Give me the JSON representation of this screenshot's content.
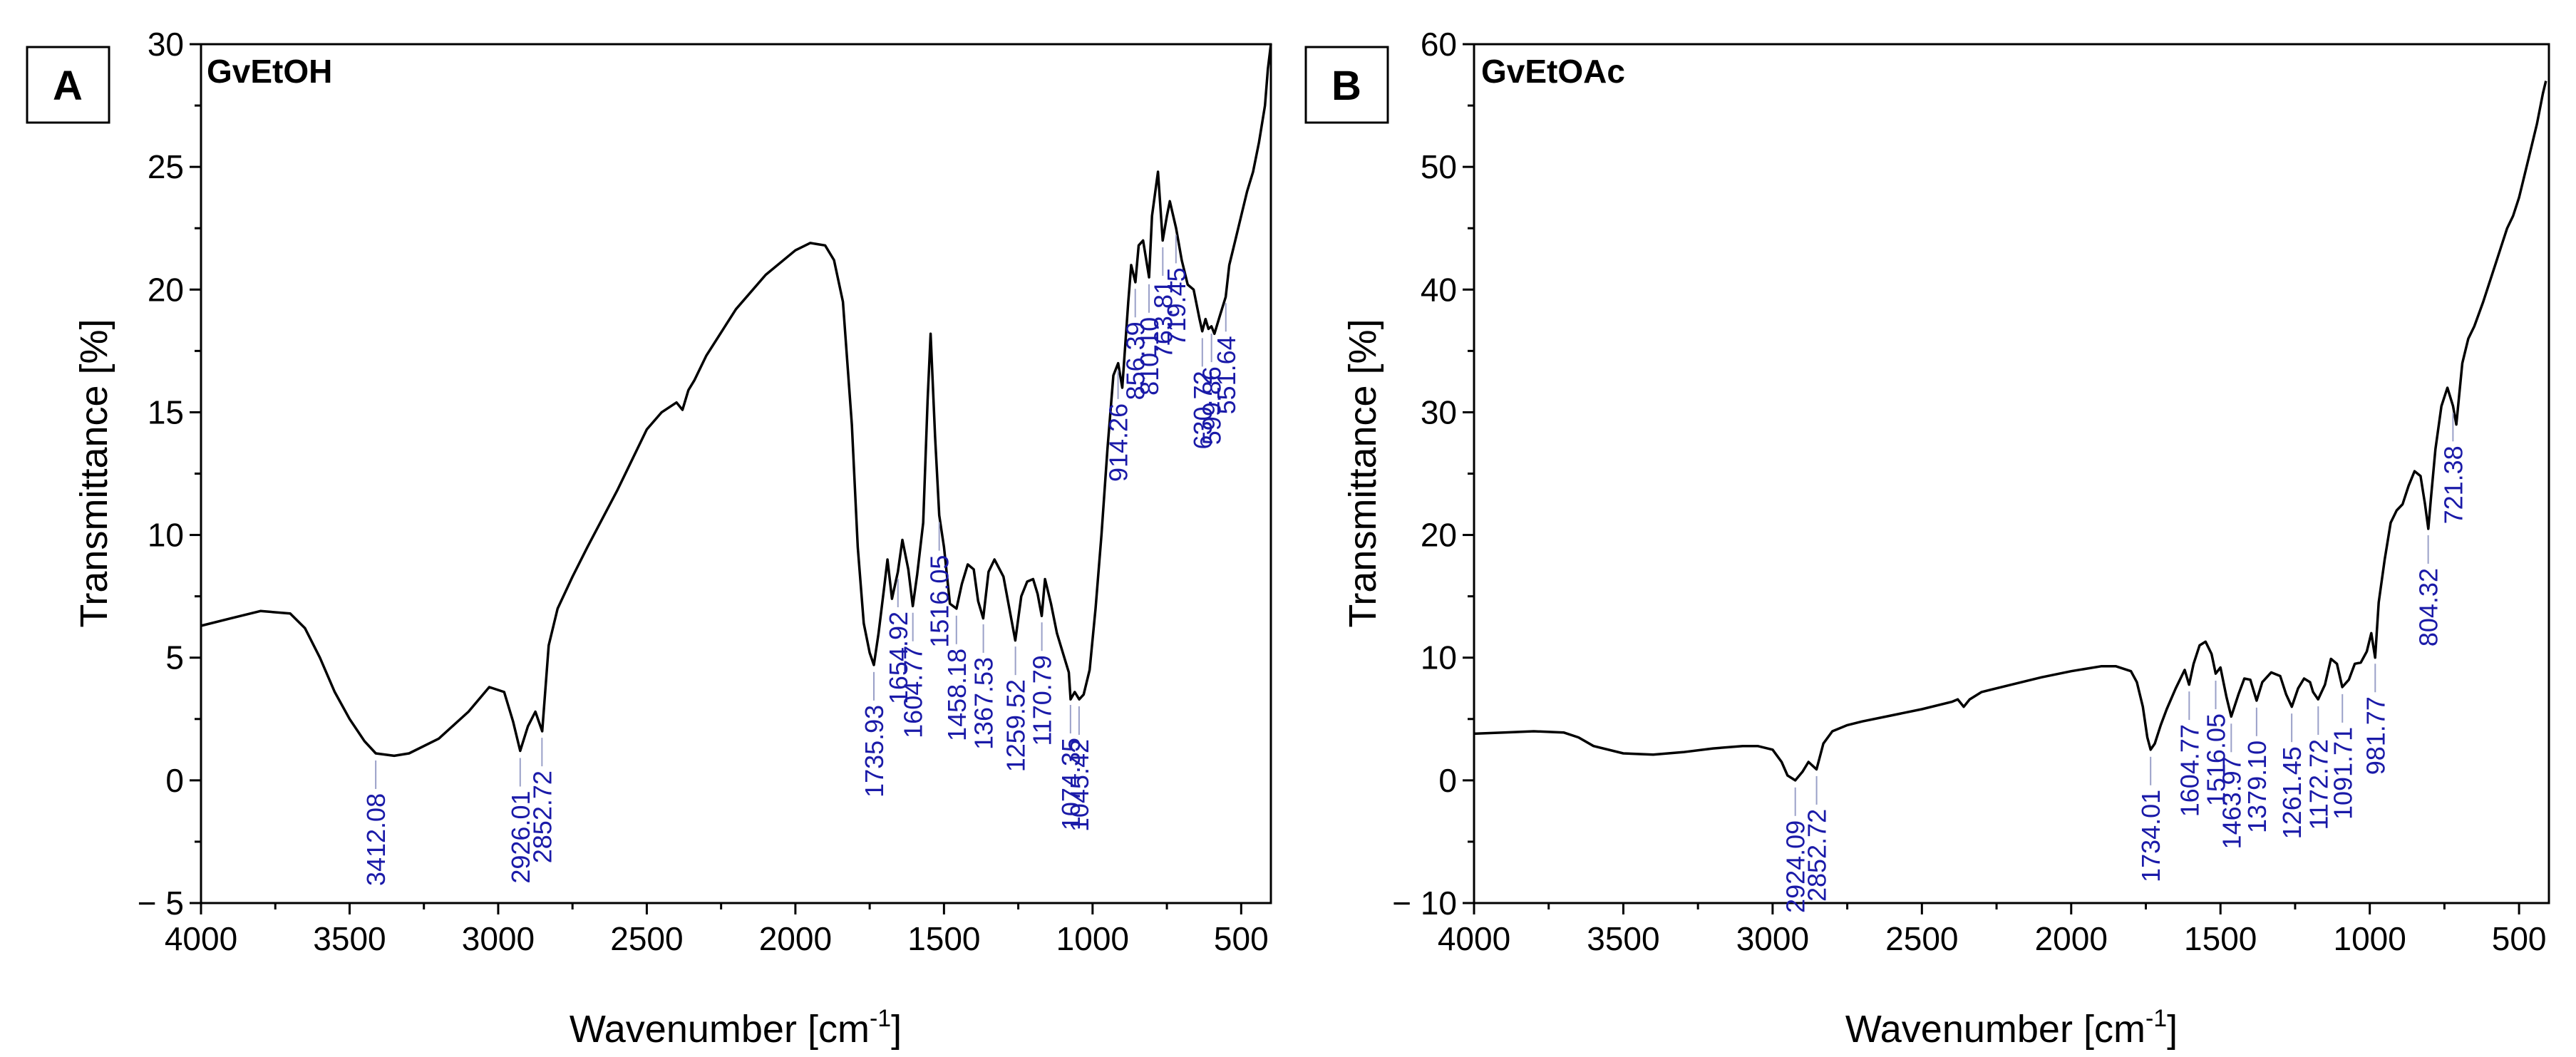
{
  "figure": {
    "xlabel_main": "Wavenumber [cm",
    "xlabel_sup": "-1",
    "xlabel_end": "]",
    "ylabel": "Transmittance [%]"
  },
  "chart_data": [
    {
      "type": "line",
      "panel_letter": "A",
      "sample": "GvEtOH",
      "xlabel": "Wavenumber [cm-1]",
      "ylabel": "Transmittance [%]",
      "xlim": [
        4000,
        400
      ],
      "ylim": [
        -5,
        30
      ],
      "xticks": [
        4000,
        3500,
        3000,
        2500,
        2000,
        1500,
        1000,
        500
      ],
      "yticks": [
        -5,
        0,
        5,
        10,
        15,
        20,
        25,
        30
      ],
      "ytick_labels": [
        "− 5",
        "0",
        "5",
        "10",
        "15",
        "20",
        "25",
        "30"
      ],
      "series": [
        {
          "name": "GvEtOH",
          "x": [
            4000,
            3900,
            3800,
            3700,
            3650,
            3600,
            3550,
            3500,
            3450,
            3412,
            3350,
            3300,
            3200,
            3100,
            3030,
            2980,
            2950,
            2926,
            2900,
            2875,
            2852,
            2830,
            2800,
            2750,
            2700,
            2600,
            2500,
            2450,
            2400,
            2380,
            2360,
            2340,
            2300,
            2200,
            2100,
            2000,
            1950,
            1900,
            1870,
            1840,
            1810,
            1790,
            1770,
            1750,
            1736,
            1720,
            1700,
            1690,
            1675,
            1655,
            1640,
            1620,
            1605,
            1590,
            1570,
            1555,
            1545,
            1530,
            1516,
            1500,
            1480,
            1458,
            1440,
            1420,
            1400,
            1385,
            1368,
            1350,
            1330,
            1300,
            1280,
            1260,
            1240,
            1220,
            1200,
            1185,
            1171,
            1160,
            1140,
            1120,
            1100,
            1080,
            1074,
            1060,
            1045,
            1030,
            1010,
            990,
            970,
            950,
            930,
            914,
            900,
            880,
            870,
            856,
            845,
            830,
            810,
            800,
            780,
            764,
            750,
            740,
            719,
            700,
            680,
            660,
            640,
            631,
            620,
            610,
            600,
            590,
            570,
            552,
            540,
            520,
            500,
            480,
            460,
            440,
            420,
            410,
            400
          ],
          "y": [
            6.3,
            6.6,
            6.9,
            6.8,
            6.2,
            5.0,
            3.6,
            2.5,
            1.6,
            1.1,
            1.0,
            1.1,
            1.7,
            2.8,
            3.8,
            3.6,
            2.4,
            1.2,
            2.2,
            2.8,
            2.0,
            5.5,
            7.0,
            8.3,
            9.5,
            11.8,
            14.3,
            15.0,
            15.4,
            15.1,
            15.9,
            16.3,
            17.3,
            19.2,
            20.6,
            21.6,
            21.9,
            21.8,
            21.2,
            19.5,
            14.5,
            9.5,
            6.4,
            5.2,
            4.7,
            6.0,
            8.0,
            9.0,
            7.4,
            8.5,
            9.8,
            8.6,
            7.1,
            8.4,
            10.5,
            15.5,
            18.2,
            14.0,
            10.8,
            9.5,
            7.2,
            7.0,
            8.0,
            8.8,
            8.6,
            7.3,
            6.6,
            8.5,
            9.0,
            8.3,
            7.0,
            5.7,
            7.5,
            8.1,
            8.2,
            7.6,
            6.7,
            8.2,
            7.2,
            6.0,
            5.2,
            4.4,
            3.3,
            3.6,
            3.3,
            3.5,
            4.5,
            7.0,
            10.0,
            13.5,
            16.5,
            17.0,
            16.0,
            19.5,
            21.0,
            20.3,
            21.8,
            22.0,
            20.5,
            23.0,
            24.8,
            22.0,
            23.0,
            23.6,
            22.5,
            21.2,
            20.2,
            20.0,
            18.8,
            18.3,
            18.8,
            18.4,
            18.5,
            18.2,
            19.0,
            19.7,
            21.0,
            22.0,
            23.0,
            24.0,
            24.8,
            26.0,
            27.5,
            29.0,
            30.0
          ]
        }
      ],
      "annotations": [
        {
          "x": 3412.08,
          "label": "3412.08"
        },
        {
          "x": 2926.01,
          "label": "2926.01"
        },
        {
          "x": 2852.72,
          "label": "2852.72"
        },
        {
          "x": 1735.93,
          "label": "1735.93"
        },
        {
          "x": 1654.92,
          "label": "1654.92"
        },
        {
          "x": 1604.77,
          "label": "1604.77"
        },
        {
          "x": 1516.05,
          "label": "1516.05"
        },
        {
          "x": 1458.18,
          "label": "1458.18"
        },
        {
          "x": 1367.53,
          "label": "1367.53"
        },
        {
          "x": 1259.52,
          "label": "1259.52"
        },
        {
          "x": 1170.79,
          "label": "1170.79"
        },
        {
          "x": 1074.35,
          "label": "1074.35"
        },
        {
          "x": 1045.42,
          "label": "1045.42"
        },
        {
          "x": 914.26,
          "label": "914.26"
        },
        {
          "x": 856.39,
          "label": "856.39"
        },
        {
          "x": 810.1,
          "label": "810.10"
        },
        {
          "x": 763.81,
          "label": "763.81"
        },
        {
          "x": 719.45,
          "label": "719.45"
        },
        {
          "x": 630.72,
          "label": "630.72"
        },
        {
          "x": 599.86,
          "label": "599.86"
        },
        {
          "x": 551.64,
          "label": "551.64"
        }
      ]
    },
    {
      "type": "line",
      "panel_letter": "B",
      "sample": "GvEtOAc",
      "xlabel": "Wavenumber [cm-1]",
      "ylabel": "Transmittance [%]",
      "xlim": [
        4000,
        400
      ],
      "ylim": [
        -10,
        60
      ],
      "xticks": [
        4000,
        3500,
        3000,
        2500,
        2000,
        1500,
        1000,
        500
      ],
      "yticks": [
        -10,
        0,
        10,
        20,
        30,
        40,
        50,
        60
      ],
      "ytick_labels": [
        "− 10",
        "0",
        "10",
        "20",
        "30",
        "40",
        "50",
        "60"
      ],
      "series": [
        {
          "name": "GvEtOAc",
          "x": [
            4000,
            3900,
            3800,
            3700,
            3650,
            3600,
            3500,
            3400,
            3300,
            3200,
            3100,
            3050,
            3000,
            2970,
            2950,
            2924,
            2900,
            2880,
            2853,
            2830,
            2800,
            2750,
            2700,
            2600,
            2500,
            2400,
            2380,
            2360,
            2340,
            2300,
            2200,
            2100,
            2000,
            1900,
            1850,
            1800,
            1780,
            1760,
            1745,
            1734,
            1720,
            1700,
            1680,
            1650,
            1620,
            1605,
            1590,
            1570,
            1550,
            1530,
            1516,
            1500,
            1480,
            1464,
            1440,
            1420,
            1400,
            1379,
            1360,
            1330,
            1300,
            1280,
            1261,
            1240,
            1220,
            1200,
            1190,
            1173,
            1150,
            1130,
            1110,
            1092,
            1070,
            1050,
            1030,
            1010,
            995,
            982,
            970,
            950,
            930,
            910,
            890,
            870,
            850,
            830,
            815,
            804,
            795,
            780,
            760,
            740,
            721,
            710,
            690,
            670,
            650,
            620,
            600,
            580,
            560,
            540,
            520,
            500,
            480,
            460,
            440,
            420,
            410
          ],
          "y": [
            3.8,
            3.9,
            4.0,
            3.9,
            3.5,
            2.8,
            2.2,
            2.1,
            2.3,
            2.6,
            2.8,
            2.8,
            2.5,
            1.5,
            0.4,
            0.0,
            0.7,
            1.5,
            0.9,
            3.0,
            4.0,
            4.5,
            4.8,
            5.3,
            5.8,
            6.4,
            6.6,
            6.0,
            6.6,
            7.2,
            7.8,
            8.4,
            8.9,
            9.3,
            9.3,
            8.9,
            8.0,
            6.0,
            3.5,
            2.5,
            3.0,
            4.5,
            5.8,
            7.5,
            9.0,
            7.8,
            9.5,
            11.0,
            11.3,
            10.3,
            8.7,
            9.2,
            6.8,
            5.2,
            7.0,
            8.3,
            8.2,
            6.5,
            8.0,
            8.8,
            8.5,
            7.0,
            6.0,
            7.5,
            8.3,
            8.0,
            7.2,
            6.6,
            7.8,
            9.9,
            9.5,
            7.6,
            8.2,
            9.5,
            9.6,
            10.5,
            12.0,
            10.0,
            14.5,
            18.0,
            21.0,
            22.0,
            22.5,
            24.0,
            25.2,
            24.8,
            22.5,
            20.5,
            23.0,
            27.0,
            30.5,
            32.0,
            30.5,
            29.0,
            34.0,
            36.0,
            37.0,
            39.0,
            40.5,
            42.0,
            43.5,
            45.0,
            46.0,
            47.5,
            49.5,
            51.5,
            53.5,
            56.0,
            57.0
          ]
        }
      ],
      "annotations": [
        {
          "x": 2924.09,
          "label": "2924.09"
        },
        {
          "x": 2852.72,
          "label": "2852.72"
        },
        {
          "x": 1734.01,
          "label": "1734.01"
        },
        {
          "x": 1604.77,
          "label": "1604.77"
        },
        {
          "x": 1516.05,
          "label": "1516.05"
        },
        {
          "x": 1463.97,
          "label": "1463.97"
        },
        {
          "x": 1379.1,
          "label": "1379.10"
        },
        {
          "x": 1261.45,
          "label": "1261.45"
        },
        {
          "x": 1172.72,
          "label": "1172.72"
        },
        {
          "x": 1091.71,
          "label": "1091.71"
        },
        {
          "x": 981.77,
          "label": "981.77"
        },
        {
          "x": 804.32,
          "label": "804.32"
        },
        {
          "x": 721.38,
          "label": "721.38"
        }
      ]
    }
  ]
}
